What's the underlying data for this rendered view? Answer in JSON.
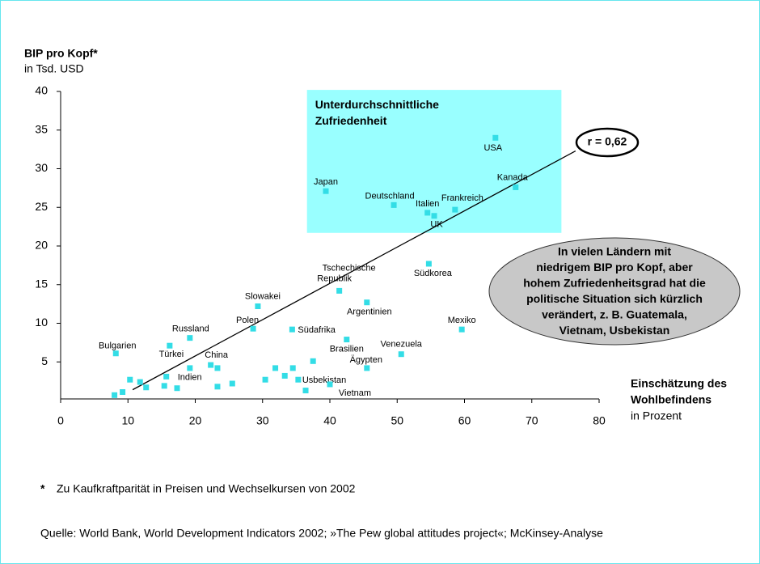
{
  "chart_data": {
    "type": "scatter",
    "ylabel": "BIP pro Kopf*",
    "ylabel_unit": "in Tsd. USD",
    "xlabel": [
      "Einschätzung des",
      "Wohlbefindens"
    ],
    "xlabel_unit": "in Prozent",
    "xlim": [
      0,
      80
    ],
    "xticks": [
      0,
      10,
      20,
      30,
      40,
      50,
      60,
      70,
      80
    ],
    "ylim": [
      0,
      40
    ],
    "yticks": [
      5,
      10,
      15,
      20,
      25,
      30,
      35,
      40
    ],
    "color": "#33dde6",
    "x": [
      64.6,
      67.6,
      39.4,
      49.5,
      54.5,
      55.5,
      58.6,
      54.7,
      41.4,
      29.3,
      45.5,
      28.6,
      19.2,
      34.4,
      59.6,
      42.5,
      8.2,
      16.2,
      50.6,
      22.3,
      15.7,
      45.5,
      35.3,
      40.0,
      8.0,
      9.2,
      10.3,
      11.8,
      12.7,
      15.4,
      17.3,
      19.2,
      23.3,
      23.3,
      25.5,
      30.4,
      31.9,
      33.3,
      34.5,
      37.5,
      36.4
    ],
    "y": [
      34.0,
      27.6,
      27.1,
      25.3,
      24.3,
      23.9,
      24.7,
      17.7,
      14.2,
      12.2,
      12.7,
      9.3,
      8.1,
      9.2,
      9.2,
      7.9,
      6.1,
      7.1,
      6.0,
      4.6,
      3.1,
      4.2,
      2.7,
      2.1,
      0.7,
      1.1,
      2.7,
      2.4,
      1.7,
      1.9,
      1.6,
      4.2,
      4.2,
      1.8,
      2.2,
      2.7,
      4.2,
      3.2,
      4.2,
      5.1,
      1.3
    ],
    "labels": [
      "USA",
      "Kanada",
      "Japan",
      "Deutschland",
      "Italien",
      "UK",
      "Frankreich",
      "Südkorea",
      [
        "Tschechische",
        "Republik"
      ],
      "Slowakei",
      "Argentinien",
      "Polen",
      "Russland",
      "Südafrika",
      "Mexiko",
      "Brasilien",
      "Bulgarien",
      "Türkei",
      "Venezuela",
      "China",
      "Indien",
      "Ägypten",
      "Usbekistan",
      "Vietnam",
      null,
      null,
      null,
      null,
      null,
      null,
      null,
      null,
      null,
      null,
      null,
      null,
      null,
      null,
      null,
      null,
      null
    ],
    "trend_line": {
      "x": [
        10.7,
        76.5
      ],
      "y": [
        1.4,
        32.3
      ]
    },
    "region": {
      "label": [
        "Unterdurchschnittliche",
        "Zufriedenheit"
      ],
      "x": [
        36.6,
        74.4
      ],
      "y": [
        21.7,
        40.2
      ],
      "color": "#99ffff"
    },
    "correlation_label": "r = 0,62",
    "callout": [
      "In vielen Ländern mit",
      "niedrigem BIP pro Kopf, aber",
      "hohem Zufriedenheitsgrad hat die",
      "politische Situation sich kürzlich",
      "verändert, z. B. Guatemala,",
      "Vietnam, Usbekistan"
    ],
    "footnote_marker": "*",
    "footnote": "Zu Kaufkraftparität in Preisen und Wechselkursen von 2002",
    "source": "Quelle: World Bank, World Development Indicators 2002; »The Pew global attitudes project«; McKinsey-Analyse"
  }
}
